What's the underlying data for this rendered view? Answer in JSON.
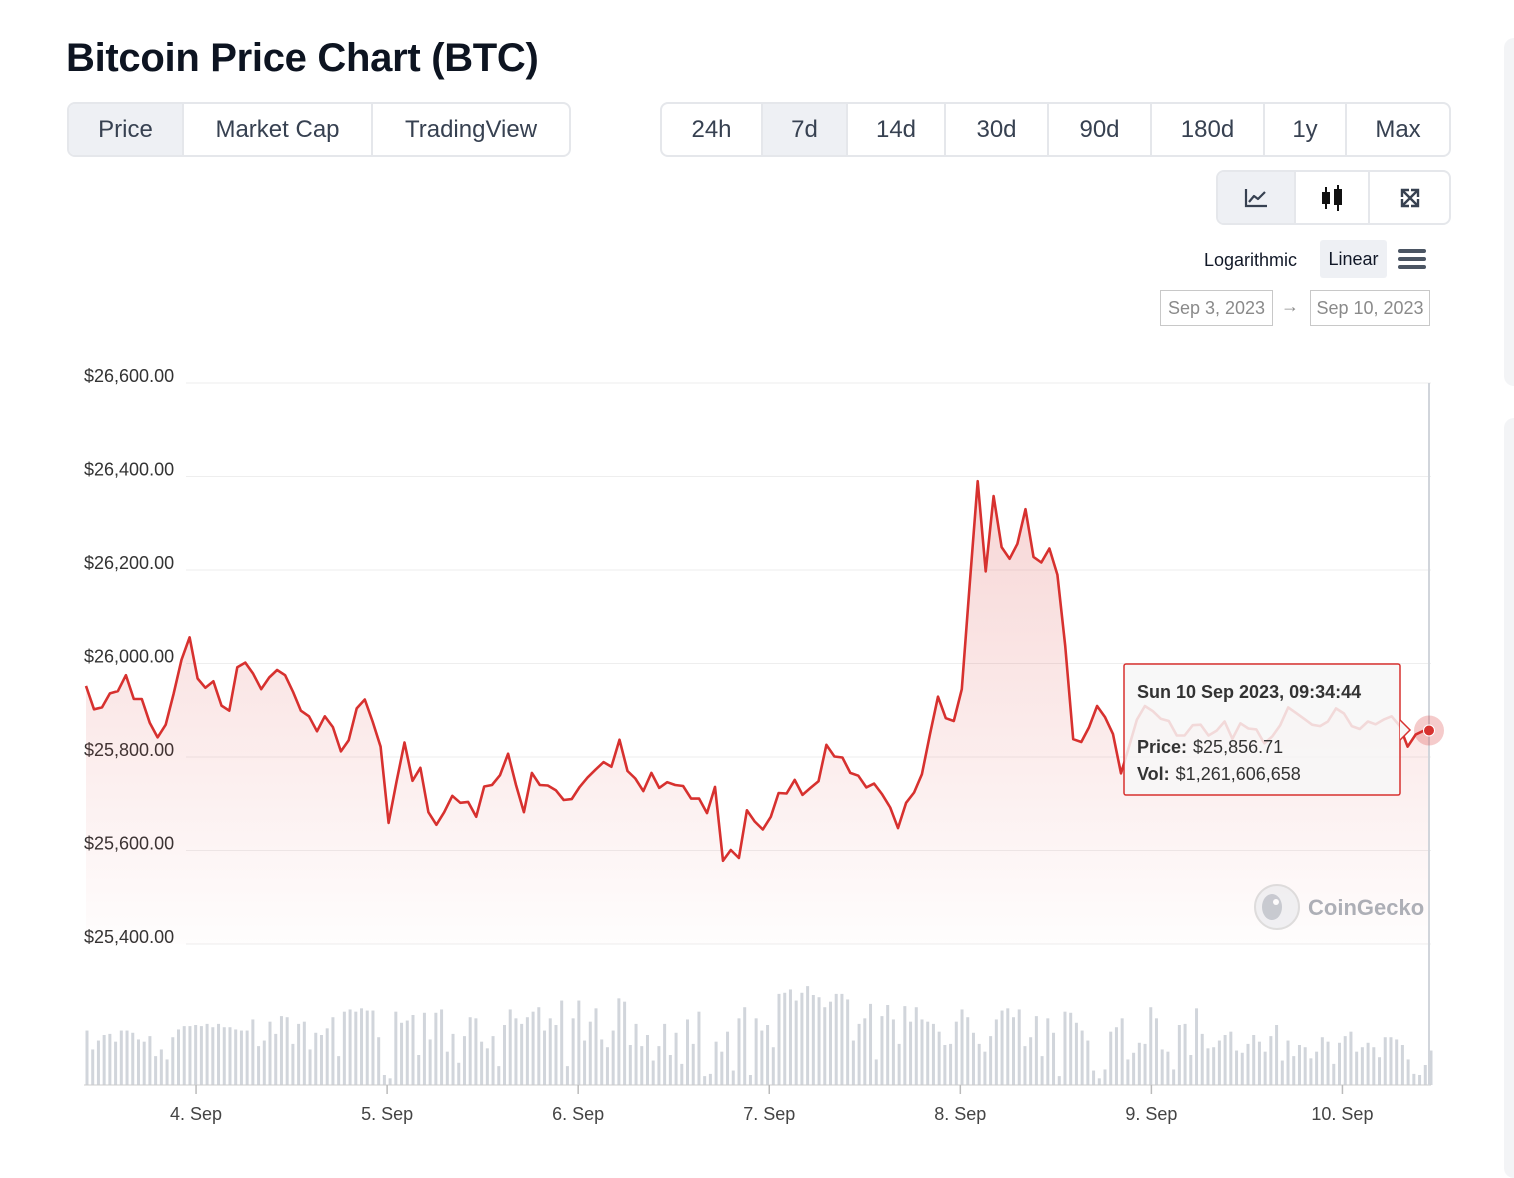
{
  "header": {
    "title": "Bitcoin Price Chart (BTC)"
  },
  "tabs": [
    {
      "label": "Price",
      "active": true
    },
    {
      "label": "Market Cap",
      "active": false
    },
    {
      "label": "TradingView",
      "active": false
    }
  ],
  "ranges": [
    {
      "label": "24h",
      "active": false
    },
    {
      "label": "7d",
      "active": true
    },
    {
      "label": "14d",
      "active": false
    },
    {
      "label": "30d",
      "active": false
    },
    {
      "label": "90d",
      "active": false
    },
    {
      "label": "180d",
      "active": false
    },
    {
      "label": "1y",
      "active": false
    },
    {
      "label": "Max",
      "active": false
    }
  ],
  "tools": [
    {
      "icon": "line-chart-icon",
      "active": true
    },
    {
      "icon": "candlestick-icon",
      "active": false
    },
    {
      "icon": "expand-icon",
      "active": false
    }
  ],
  "scale": {
    "log_label": "Logarithmic",
    "linear_label": "Linear",
    "selected": "Linear"
  },
  "date_range": {
    "from": "Sep 3, 2023",
    "arrow": "→",
    "to": "Sep 10, 2023"
  },
  "tooltip": {
    "date": "Sun 10 Sep 2023, 09:34:44",
    "price_label": "Price:",
    "price_value": "$25,856.71",
    "vol_label": "Vol:",
    "vol_value": "$1,261,606,658"
  },
  "watermark": "CoinGecko",
  "colors": {
    "line": "#d7312f",
    "volume": "#d1d5db",
    "grid": "#eeeeee",
    "accent_bg": "#eef0f4"
  },
  "chart_data": {
    "type": "area",
    "title": "Bitcoin Price Chart (BTC)",
    "xlabel": "",
    "ylabel": "",
    "x_unit": "days since 4 Sep 00:00",
    "xlim": [
      -0.576,
      6.453
    ],
    "ylim": [
      25400,
      26600
    ],
    "yticks": [
      25400,
      25600,
      25800,
      26000,
      26200,
      26400,
      26600
    ],
    "ytick_labels": [
      "$25,400.00",
      "$25,600.00",
      "$25,800.00",
      "$26,000.00",
      "$26,200.00",
      "$26,400.00",
      "$26,600.00"
    ],
    "xticks": [
      0,
      1,
      2,
      3,
      4,
      5,
      6
    ],
    "xtick_labels": [
      "4. Sep",
      "5. Sep",
      "6. Sep",
      "7. Sep",
      "8. Sep",
      "9. Sep",
      "10. Sep"
    ],
    "series": [
      {
        "name": "Price",
        "points": [
          [
            -0.576,
            25952
          ],
          [
            -0.534,
            25902
          ],
          [
            -0.492,
            25906
          ],
          [
            -0.451,
            25936
          ],
          [
            -0.409,
            25941
          ],
          [
            -0.367,
            25975
          ],
          [
            -0.326,
            25924
          ],
          [
            -0.284,
            25924
          ],
          [
            -0.242,
            25873
          ],
          [
            -0.201,
            25842
          ],
          [
            -0.159,
            25869
          ],
          [
            -0.117,
            25936
          ],
          [
            -0.076,
            26008
          ],
          [
            -0.034,
            26056
          ],
          [
            0.008,
            25968
          ],
          [
            0.049,
            25948
          ],
          [
            0.091,
            25962
          ],
          [
            0.133,
            25910
          ],
          [
            0.174,
            25899
          ],
          [
            0.216,
            25992
          ],
          [
            0.258,
            26002
          ],
          [
            0.299,
            25978
          ],
          [
            0.341,
            25945
          ],
          [
            0.383,
            25970
          ],
          [
            0.424,
            25986
          ],
          [
            0.466,
            25975
          ],
          [
            0.508,
            25939
          ],
          [
            0.549,
            25899
          ],
          [
            0.591,
            25887
          ],
          [
            0.633,
            25855
          ],
          [
            0.674,
            25887
          ],
          [
            0.716,
            25864
          ],
          [
            0.758,
            25812
          ],
          [
            0.799,
            25836
          ],
          [
            0.841,
            25904
          ],
          [
            0.883,
            25923
          ],
          [
            0.924,
            25876
          ],
          [
            0.966,
            25822
          ],
          [
            1.008,
            25659
          ],
          [
            1.049,
            25747
          ],
          [
            1.091,
            25831
          ],
          [
            1.133,
            25749
          ],
          [
            1.174,
            25777
          ],
          [
            1.216,
            25682
          ],
          [
            1.258,
            25655
          ],
          [
            1.299,
            25682
          ],
          [
            1.341,
            25717
          ],
          [
            1.383,
            25702
          ],
          [
            1.424,
            25704
          ],
          [
            1.466,
            25672
          ],
          [
            1.508,
            25737
          ],
          [
            1.549,
            25740
          ],
          [
            1.591,
            25761
          ],
          [
            1.633,
            25807
          ],
          [
            1.674,
            25741
          ],
          [
            1.716,
            25682
          ],
          [
            1.758,
            25766
          ],
          [
            1.799,
            25740
          ],
          [
            1.841,
            25739
          ],
          [
            1.883,
            25729
          ],
          [
            1.924,
            25708
          ],
          [
            1.966,
            25710
          ],
          [
            2.008,
            25736
          ],
          [
            2.049,
            25756
          ],
          [
            2.091,
            25773
          ],
          [
            2.133,
            25789
          ],
          [
            2.174,
            25779
          ],
          [
            2.216,
            25837
          ],
          [
            2.258,
            25770
          ],
          [
            2.299,
            25754
          ],
          [
            2.341,
            25727
          ],
          [
            2.383,
            25766
          ],
          [
            2.424,
            25734
          ],
          [
            2.466,
            25746
          ],
          [
            2.508,
            25740
          ],
          [
            2.549,
            25738
          ],
          [
            2.591,
            25711
          ],
          [
            2.633,
            25711
          ],
          [
            2.674,
            25680
          ],
          [
            2.716,
            25736
          ],
          [
            2.758,
            25578
          ],
          [
            2.799,
            25601
          ],
          [
            2.841,
            25584
          ],
          [
            2.883,
            25686
          ],
          [
            2.924,
            25662
          ],
          [
            2.966,
            25645
          ],
          [
            3.008,
            25672
          ],
          [
            3.049,
            25723
          ],
          [
            3.091,
            25722
          ],
          [
            3.133,
            25751
          ],
          [
            3.174,
            25719
          ],
          [
            3.216,
            25734
          ],
          [
            3.258,
            25748
          ],
          [
            3.299,
            25826
          ],
          [
            3.341,
            25801
          ],
          [
            3.383,
            25799
          ],
          [
            3.424,
            25766
          ],
          [
            3.466,
            25760
          ],
          [
            3.508,
            25735
          ],
          [
            3.549,
            25743
          ],
          [
            3.591,
            25720
          ],
          [
            3.633,
            25692
          ],
          [
            3.674,
            25648
          ],
          [
            3.716,
            25702
          ],
          [
            3.758,
            25724
          ],
          [
            3.799,
            25763
          ],
          [
            3.841,
            25848
          ],
          [
            3.883,
            25929
          ],
          [
            3.924,
            25883
          ],
          [
            3.966,
            25877
          ],
          [
            4.008,
            25945
          ],
          [
            4.049,
            26169
          ],
          [
            4.091,
            26390
          ],
          [
            4.133,
            26197
          ],
          [
            4.174,
            26358
          ],
          [
            4.216,
            26249
          ],
          [
            4.258,
            26224
          ],
          [
            4.299,
            26256
          ],
          [
            4.341,
            26330
          ],
          [
            4.383,
            26228
          ],
          [
            4.424,
            26216
          ],
          [
            4.466,
            26246
          ],
          [
            4.508,
            26190
          ],
          [
            4.549,
            26038
          ],
          [
            4.591,
            25838
          ],
          [
            4.633,
            25832
          ],
          [
            4.674,
            25864
          ],
          [
            4.716,
            25909
          ],
          [
            4.758,
            25885
          ],
          [
            4.799,
            25849
          ],
          [
            4.841,
            25765
          ],
          [
            4.883,
            25822
          ],
          [
            4.924,
            25880
          ],
          [
            4.966,
            25909
          ],
          [
            5.008,
            25898
          ],
          [
            5.049,
            25882
          ],
          [
            5.091,
            25877
          ],
          [
            5.133,
            25846
          ],
          [
            5.174,
            25846
          ],
          [
            5.216,
            25868
          ],
          [
            5.258,
            25869
          ],
          [
            5.299,
            25846
          ],
          [
            5.341,
            25856
          ],
          [
            5.383,
            25876
          ],
          [
            5.424,
            25839
          ],
          [
            5.466,
            25872
          ],
          [
            5.508,
            25861
          ],
          [
            5.549,
            25859
          ],
          [
            5.591,
            25829
          ],
          [
            5.633,
            25844
          ],
          [
            5.674,
            25868
          ],
          [
            5.716,
            25906
          ],
          [
            5.758,
            25894
          ],
          [
            5.799,
            25882
          ],
          [
            5.841,
            25869
          ],
          [
            5.883,
            25866
          ],
          [
            5.924,
            25876
          ],
          [
            5.966,
            25904
          ],
          [
            6.008,
            25893
          ],
          [
            6.049,
            25866
          ],
          [
            6.091,
            25860
          ],
          [
            6.133,
            25876
          ],
          [
            6.174,
            25870
          ],
          [
            6.216,
            25880
          ],
          [
            6.258,
            25887
          ],
          [
            6.299,
            25867
          ],
          [
            6.341,
            25822
          ],
          [
            6.383,
            25848
          ],
          [
            6.424,
            25856
          ],
          [
            6.453,
            25857
          ]
        ]
      },
      {
        "name": "Volume (relative)",
        "values": [
          0.49,
          0.32,
          0.4,
          0.45,
          0.46,
          0.39,
          0.49,
          0.49,
          0.47,
          0.41,
          0.39,
          0.44,
          0.26,
          0.32,
          0.23,
          0.43,
          0.5,
          0.53,
          0.53,
          0.54,
          0.53,
          0.55,
          0.52,
          0.55,
          0.52,
          0.52,
          0.5,
          0.49,
          0.49,
          0.59,
          0.35,
          0.4,
          0.57,
          0.46,
          0.62,
          0.61,
          0.37,
          0.55,
          0.57,
          0.32,
          0.47,
          0.45,
          0.51,
          0.61,
          0.26,
          0.66,
          0.68,
          0.66,
          0.69,
          0.67,
          0.67,
          0.43,
          0.09,
          0.06,
          0.66,
          0.56,
          0.58,
          0.63,
          0.27,
          0.65,
          0.41,
          0.65,
          0.68,
          0.3,
          0.46,
          0.2,
          0.44,
          0.61,
          0.6,
          0.39,
          0.33,
          0.44,
          0.17,
          0.54,
          0.68,
          0.6,
          0.55,
          0.61,
          0.66,
          0.7,
          0.49,
          0.6,
          0.54,
          0.76,
          0.17,
          0.6,
          0.76,
          0.4,
          0.57,
          0.69,
          0.41,
          0.34,
          0.49,
          0.78,
          0.75,
          0.36,
          0.55,
          0.35,
          0.45,
          0.22,
          0.35,
          0.55,
          0.27,
          0.47,
          0.19,
          0.59,
          0.37,
          0.66,
          0.08,
          0.1,
          0.39,
          0.3,
          0.48,
          0.13,
          0.6,
          0.7,
          0.09,
          0.6,
          0.49,
          0.54,
          0.34,
          0.82,
          0.83,
          0.86,
          0.76,
          0.83,
          0.89,
          0.81,
          0.79,
          0.7,
          0.75,
          0.82,
          0.82,
          0.77,
          0.4,
          0.55,
          0.6,
          0.73,
          0.23,
          0.62,
          0.72,
          0.59,
          0.37,
          0.71,
          0.57,
          0.7,
          0.59,
          0.57,
          0.55,
          0.48,
          0.36,
          0.37,
          0.57,
          0.68,
          0.61,
          0.47,
          0.37,
          0.3,
          0.44,
          0.59,
          0.67,
          0.69,
          0.61,
          0.68,
          0.35,
          0.43,
          0.62,
          0.26,
          0.6,
          0.47,
          0.08,
          0.66,
          0.65,
          0.56,
          0.49,
          0.4,
          0.13,
          0.06,
          0.14,
          0.48,
          0.52,
          0.6,
          0.23,
          0.29,
          0.38,
          0.37,
          0.7,
          0.6,
          0.32,
          0.3,
          0.14,
          0.54,
          0.55,
          0.27,
          0.69,
          0.46,
          0.33,
          0.34,
          0.4,
          0.45,
          0.48,
          0.31,
          0.29,
          0.37,
          0.45,
          0.39,
          0.3,
          0.44,
          0.54,
          0.22,
          0.4,
          0.26,
          0.36,
          0.34,
          0.24,
          0.3,
          0.43,
          0.39,
          0.19,
          0.38,
          0.44,
          0.48,
          0.3,
          0.34,
          0.38,
          0.34,
          0.25,
          0.43,
          0.43,
          0.41,
          0.36,
          0.23,
          0.1,
          0.09,
          0.18,
          0.31
        ]
      }
    ],
    "highlight": {
      "x": 6.453,
      "y": 25856.71
    }
  }
}
